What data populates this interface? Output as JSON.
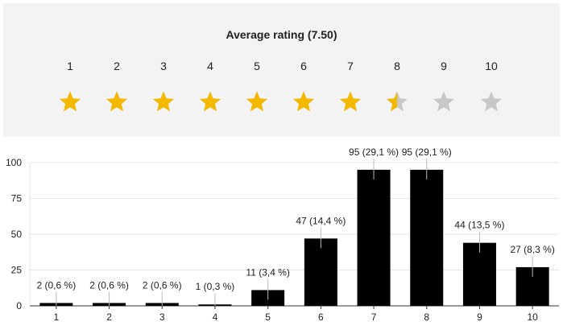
{
  "rating": {
    "title": "Average rating (7.50)",
    "average": 7.5,
    "max": 10,
    "star_numbers": [
      "1",
      "2",
      "3",
      "4",
      "5",
      "6",
      "7",
      "8",
      "9",
      "10"
    ],
    "filled_color": "#f5b800",
    "empty_color": "#c8c8c8",
    "icon": "star-icon"
  },
  "chart_data": {
    "type": "bar",
    "categories": [
      "1",
      "2",
      "3",
      "4",
      "5",
      "6",
      "7",
      "8",
      "9",
      "10"
    ],
    "values": [
      2,
      2,
      2,
      1,
      11,
      47,
      95,
      95,
      44,
      27
    ],
    "data_labels": [
      "2 (0,6 %)",
      "2 (0,6 %)",
      "2 (0,6 %)",
      "1 (0,3 %)",
      "11 (3,4 %)",
      "47 (14,4 %)",
      "95 (29,1 %)",
      "95 (29,1 %)",
      "44 (13,5 %)",
      "27 (8,3 %)"
    ],
    "yticks": [
      "0",
      "25",
      "50",
      "75",
      "100"
    ],
    "ylim": [
      0,
      100
    ],
    "grid": true,
    "bar_color": "#000000",
    "title": "",
    "xlabel": "",
    "ylabel": ""
  }
}
